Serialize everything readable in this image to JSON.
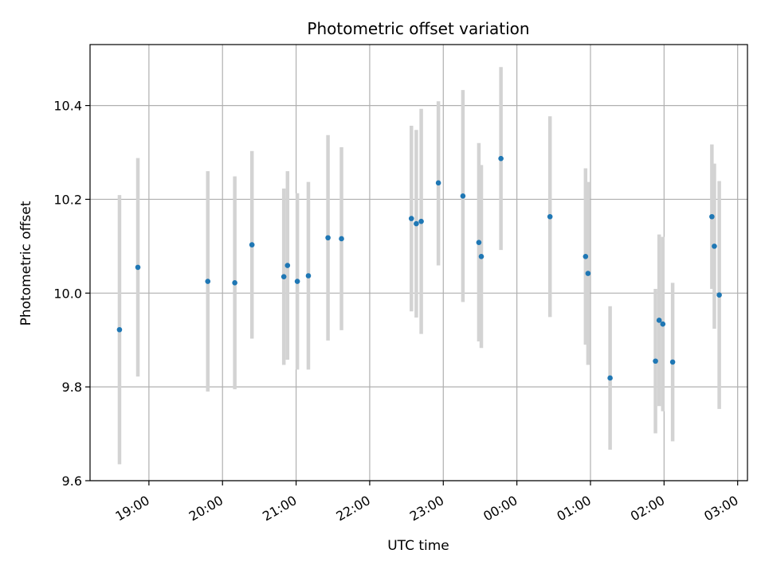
{
  "chart_data": {
    "type": "scatter",
    "title": "Photometric offset variation",
    "xlabel": "UTC time",
    "ylabel": "Photometric offset",
    "x_unit": "hours since 00:00 UTC (negative = previous evening)",
    "xlim": [
      "18:12",
      "03:08"
    ],
    "ylim": [
      9.6,
      10.53
    ],
    "x_ticks": [
      {
        "label": "19:00",
        "value": -5
      },
      {
        "label": "20:00",
        "value": -4
      },
      {
        "label": "21:00",
        "value": -3
      },
      {
        "label": "22:00",
        "value": -2
      },
      {
        "label": "23:00",
        "value": -1
      },
      {
        "label": "00:00",
        "value": 0
      },
      {
        "label": "01:00",
        "value": 1
      },
      {
        "label": "02:00",
        "value": 2
      },
      {
        "label": "03:00",
        "value": 3
      }
    ],
    "y_ticks": [
      "9.6",
      "9.8",
      "10.0",
      "10.2",
      "10.4"
    ],
    "grid": true,
    "colors": {
      "point": "#1f77b4",
      "errorbar": "#d3d3d3",
      "grid": "#b0b0b0"
    },
    "series": [
      {
        "points": [
          {
            "t": "18:36",
            "y": 9.922,
            "lo": 9.635,
            "hi": 10.209
          },
          {
            "t": "18:51",
            "y": 10.055,
            "lo": 9.822,
            "hi": 10.288
          },
          {
            "t": "19:48",
            "y": 10.025,
            "lo": 9.79,
            "hi": 10.26
          },
          {
            "t": "20:10",
            "y": 10.022,
            "lo": 9.795,
            "hi": 10.249
          },
          {
            "t": "20:24",
            "y": 10.103,
            "lo": 9.903,
            "hi": 10.303
          },
          {
            "t": "20:50",
            "y": 10.035,
            "lo": 9.847,
            "hi": 10.223
          },
          {
            "t": "20:53",
            "y": 10.059,
            "lo": 9.858,
            "hi": 10.26
          },
          {
            "t": "21:01",
            "y": 10.025,
            "lo": 9.837,
            "hi": 10.213
          },
          {
            "t": "21:10",
            "y": 10.037,
            "lo": 9.837,
            "hi": 10.237
          },
          {
            "t": "21:26",
            "y": 10.118,
            "lo": 9.899,
            "hi": 10.337
          },
          {
            "t": "21:37",
            "y": 10.116,
            "lo": 9.921,
            "hi": 10.311
          },
          {
            "t": "22:34",
            "y": 10.159,
            "lo": 9.961,
            "hi": 10.357
          },
          {
            "t": "22:38",
            "y": 10.148,
            "lo": 9.948,
            "hi": 10.348
          },
          {
            "t": "22:42",
            "y": 10.153,
            "lo": 9.913,
            "hi": 10.393
          },
          {
            "t": "22:56",
            "y": 10.235,
            "lo": 10.059,
            "hi": 10.409
          },
          {
            "t": "23:16",
            "y": 10.207,
            "lo": 9.981,
            "hi": 10.433
          },
          {
            "t": "23:29",
            "y": 10.108,
            "lo": 9.897,
            "hi": 10.32
          },
          {
            "t": "23:31",
            "y": 10.078,
            "lo": 9.883,
            "hi": 10.273
          },
          {
            "t": "23:47",
            "y": 10.287,
            "lo": 10.092,
            "hi": 10.482
          },
          {
            "t": "00:27",
            "y": 10.163,
            "lo": 9.949,
            "hi": 10.377
          },
          {
            "t": "00:56",
            "y": 10.078,
            "lo": 9.89,
            "hi": 10.266
          },
          {
            "t": "00:58",
            "y": 10.042,
            "lo": 9.847,
            "hi": 10.237
          },
          {
            "t": "01:16",
            "y": 9.819,
            "lo": 9.666,
            "hi": 9.972
          },
          {
            "t": "01:53",
            "y": 9.855,
            "lo": 9.701,
            "hi": 10.009
          },
          {
            "t": "01:56",
            "y": 9.942,
            "lo": 9.759,
            "hi": 10.125
          },
          {
            "t": "01:59",
            "y": 9.934,
            "lo": 9.748,
            "hi": 10.12
          },
          {
            "t": "02:07",
            "y": 9.853,
            "lo": 9.684,
            "hi": 10.022
          },
          {
            "t": "02:39",
            "y": 10.163,
            "lo": 10.009,
            "hi": 10.317
          },
          {
            "t": "02:41",
            "y": 10.1,
            "lo": 9.924,
            "hi": 10.276
          },
          {
            "t": "02:45",
            "y": 9.996,
            "lo": 9.753,
            "hi": 10.239
          }
        ]
      }
    ]
  }
}
